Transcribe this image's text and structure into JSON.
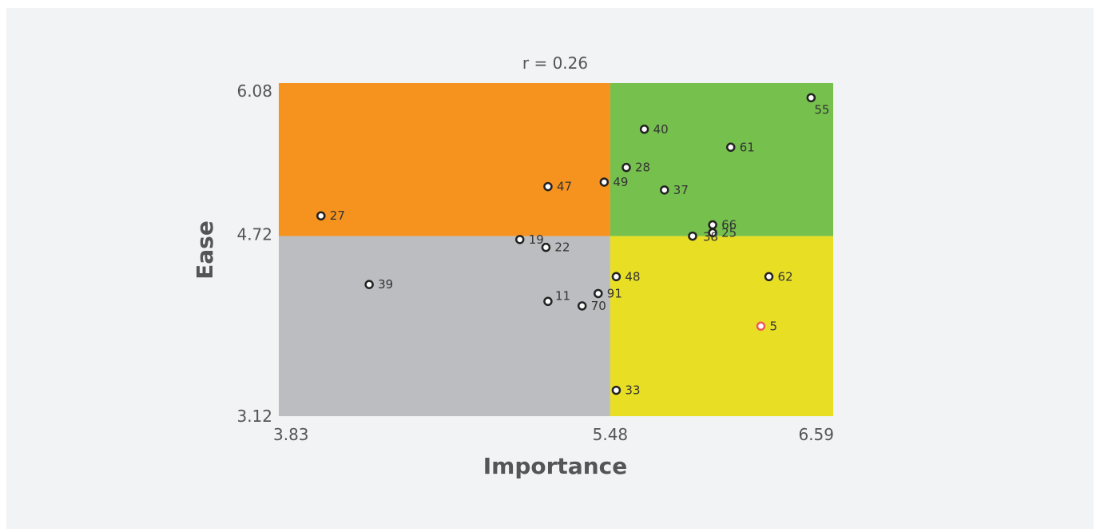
{
  "chart_data": {
    "type": "scatter",
    "title": "r = 0.26",
    "xlabel": "Importance",
    "ylabel": "Ease",
    "xlim": [
      3.83,
      6.59
    ],
    "ylim": [
      3.12,
      6.08
    ],
    "x_split": 5.48,
    "y_split": 4.72,
    "x_ticks": [
      "3.83",
      "5.48",
      "6.59"
    ],
    "y_ticks": [
      "6.08",
      "4.72",
      "3.12"
    ],
    "quadrant_colors": {
      "top_left": "#f6921e",
      "top_right": "#76c04e",
      "bottom_left": "#bcbdc0",
      "bottom_right": "#e8df25"
    },
    "marker_color": "#222222",
    "highlight_color": "#f05a5a",
    "points": [
      {
        "label": "55",
        "x": 6.48,
        "y": 5.95,
        "label_pos": "below"
      },
      {
        "label": "40",
        "x": 5.65,
        "y": 5.67
      },
      {
        "label": "61",
        "x": 6.08,
        "y": 5.51
      },
      {
        "label": "28",
        "x": 5.56,
        "y": 5.33
      },
      {
        "label": "49",
        "x": 5.45,
        "y": 5.2
      },
      {
        "label": "47",
        "x": 5.17,
        "y": 5.16
      },
      {
        "label": "37",
        "x": 5.75,
        "y": 5.13
      },
      {
        "label": "27",
        "x": 4.04,
        "y": 4.9
      },
      {
        "label": "66",
        "x": 5.99,
        "y": 4.82
      },
      {
        "label": "25",
        "x": 5.99,
        "y": 4.75
      },
      {
        "label": "38",
        "x": 5.89,
        "y": 4.72,
        "label_pos": "below-right"
      },
      {
        "label": "19",
        "x": 5.03,
        "y": 4.69
      },
      {
        "label": "22",
        "x": 5.16,
        "y": 4.62
      },
      {
        "label": "48",
        "x": 5.51,
        "y": 4.36
      },
      {
        "label": "62",
        "x": 6.27,
        "y": 4.36
      },
      {
        "label": "39",
        "x": 4.28,
        "y": 4.29
      },
      {
        "label": "91",
        "x": 5.42,
        "y": 4.21
      },
      {
        "label": "11",
        "x": 5.17,
        "y": 4.14,
        "label_pos": "above-right"
      },
      {
        "label": "70",
        "x": 5.34,
        "y": 4.1
      },
      {
        "label": "5",
        "x": 6.23,
        "y": 3.92,
        "highlight": true
      },
      {
        "label": "33",
        "x": 5.51,
        "y": 3.35
      }
    ]
  }
}
